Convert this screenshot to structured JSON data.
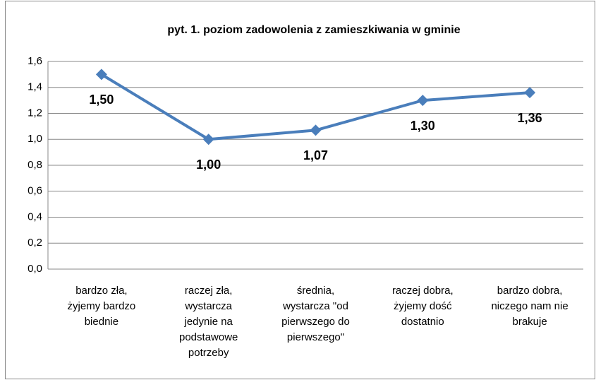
{
  "chart_data": {
    "type": "line",
    "title": "pyt. 1. poziom zadowolenia z zamieszkiwania w gminie",
    "categories": [
      [
        "bardzo zła,",
        "żyjemy bardzo",
        "biednie"
      ],
      [
        "raczej zła,",
        "wystarcza",
        "jedynie na",
        "podstawowe",
        "potrzeby"
      ],
      [
        "średnia,",
        "wystarcza \"od",
        "pierwszego do",
        "pierwszego\""
      ],
      [
        "raczej dobra,",
        "żyjemy dość",
        "dostatnio"
      ],
      [
        "bardzo dobra,",
        "niczego nam nie",
        "brakuje"
      ]
    ],
    "series": [
      {
        "color": "#4a7ebb",
        "values": [
          1.5,
          1.0,
          1.07,
          1.3,
          1.36
        ],
        "value_labels": [
          "1,50",
          "1,00",
          "1,07",
          "1,30",
          "1,36"
        ]
      }
    ],
    "ylim": [
      0,
      1.6
    ],
    "yticks": [
      {
        "value": 0,
        "label": "0,0"
      },
      {
        "value": 0.2,
        "label": "0,2"
      },
      {
        "value": 0.4,
        "label": "0,4"
      },
      {
        "value": 0.6,
        "label": "0,6"
      },
      {
        "value": 0.8,
        "label": "0,8"
      },
      {
        "value": 1.0,
        "label": "1,0"
      },
      {
        "value": 1.2,
        "label": "1,2"
      },
      {
        "value": 1.4,
        "label": "1,4"
      },
      {
        "value": 1.6,
        "label": "1,6"
      }
    ],
    "grid": true
  }
}
